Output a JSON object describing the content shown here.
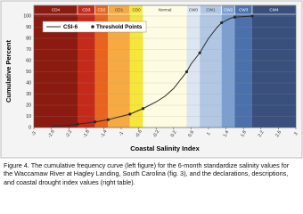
{
  "chart_data": {
    "type": "line",
    "xlabel": "Coastal Salinity Index",
    "ylabel": "Cumulative Percent",
    "xlim": [
      -3,
      3
    ],
    "xticks": [
      -3,
      -2.6,
      -2.2,
      -1.8,
      -1.4,
      -1,
      -0.6,
      -0.2,
      0.2,
      0.6,
      1,
      1.4,
      1.8,
      2.2,
      2.6,
      3
    ],
    "ylim": [
      0,
      100
    ],
    "yticks": [
      0,
      10,
      20,
      30,
      40,
      50,
      60,
      70,
      80,
      90,
      100
    ],
    "bands": [
      {
        "label": "CD4",
        "from": -3,
        "to": -2,
        "color": "#8b1a10"
      },
      {
        "label": "CD3",
        "from": -2,
        "to": -1.6,
        "color": "#c42a1a"
      },
      {
        "label": "CD2",
        "from": -1.6,
        "to": -1.3,
        "color": "#e8641e"
      },
      {
        "label": "CD1",
        "from": -1.3,
        "to": -0.8,
        "color": "#f7aa42"
      },
      {
        "label": "CD0",
        "from": -0.8,
        "to": -0.5,
        "color": "#f6e63c"
      },
      {
        "label": "Normal",
        "from": -0.5,
        "to": 0.5,
        "color": "#fdfbe2"
      },
      {
        "label": "CW0",
        "from": 0.5,
        "to": 0.8,
        "color": "#dce6f2"
      },
      {
        "label": "CW1",
        "from": 0.8,
        "to": 1.3,
        "color": "#b2c7e2"
      },
      {
        "label": "CW2",
        "from": 1.3,
        "to": 1.6,
        "color": "#7d9fcf"
      },
      {
        "label": "CW3",
        "from": 1.6,
        "to": 2,
        "color": "#4b70aa"
      },
      {
        "label": "CW4",
        "from": 2,
        "to": 3,
        "color": "#3a507c"
      }
    ],
    "series": [
      {
        "name": "CSI-6",
        "color": "#2a2a2a",
        "x": [
          -2.6,
          -2.2,
          -2,
          -1.6,
          -1.3,
          -1,
          -0.8,
          -0.5,
          -0.2,
          0,
          0.2,
          0.5,
          0.6,
          0.8,
          1,
          1.2,
          1.3,
          1.5,
          1.6,
          2
        ],
        "values": [
          1,
          2,
          3,
          5,
          7,
          10,
          12,
          17,
          23,
          28,
          35,
          50,
          57,
          67,
          80,
          90,
          94,
          98,
          99,
          100
        ]
      },
      {
        "name": "Threshold Points",
        "color": "#2a2a2a",
        "x": [
          -2,
          -1.6,
          -1.3,
          -0.8,
          -0.5,
          0.5,
          0.8,
          1.3,
          1.6,
          2
        ],
        "values": [
          3,
          5,
          7,
          12,
          17,
          50,
          67,
          94,
          99,
          100
        ]
      }
    ],
    "caption": "Figure 4.  The cumulative frequency curve (left figure) for the  6-month standardize salinity values for the Waccamaw River at Hagley Landing, South Carolina (fig. 3), and the declarations, descriptions, and coastal drought index values (right table)."
  }
}
